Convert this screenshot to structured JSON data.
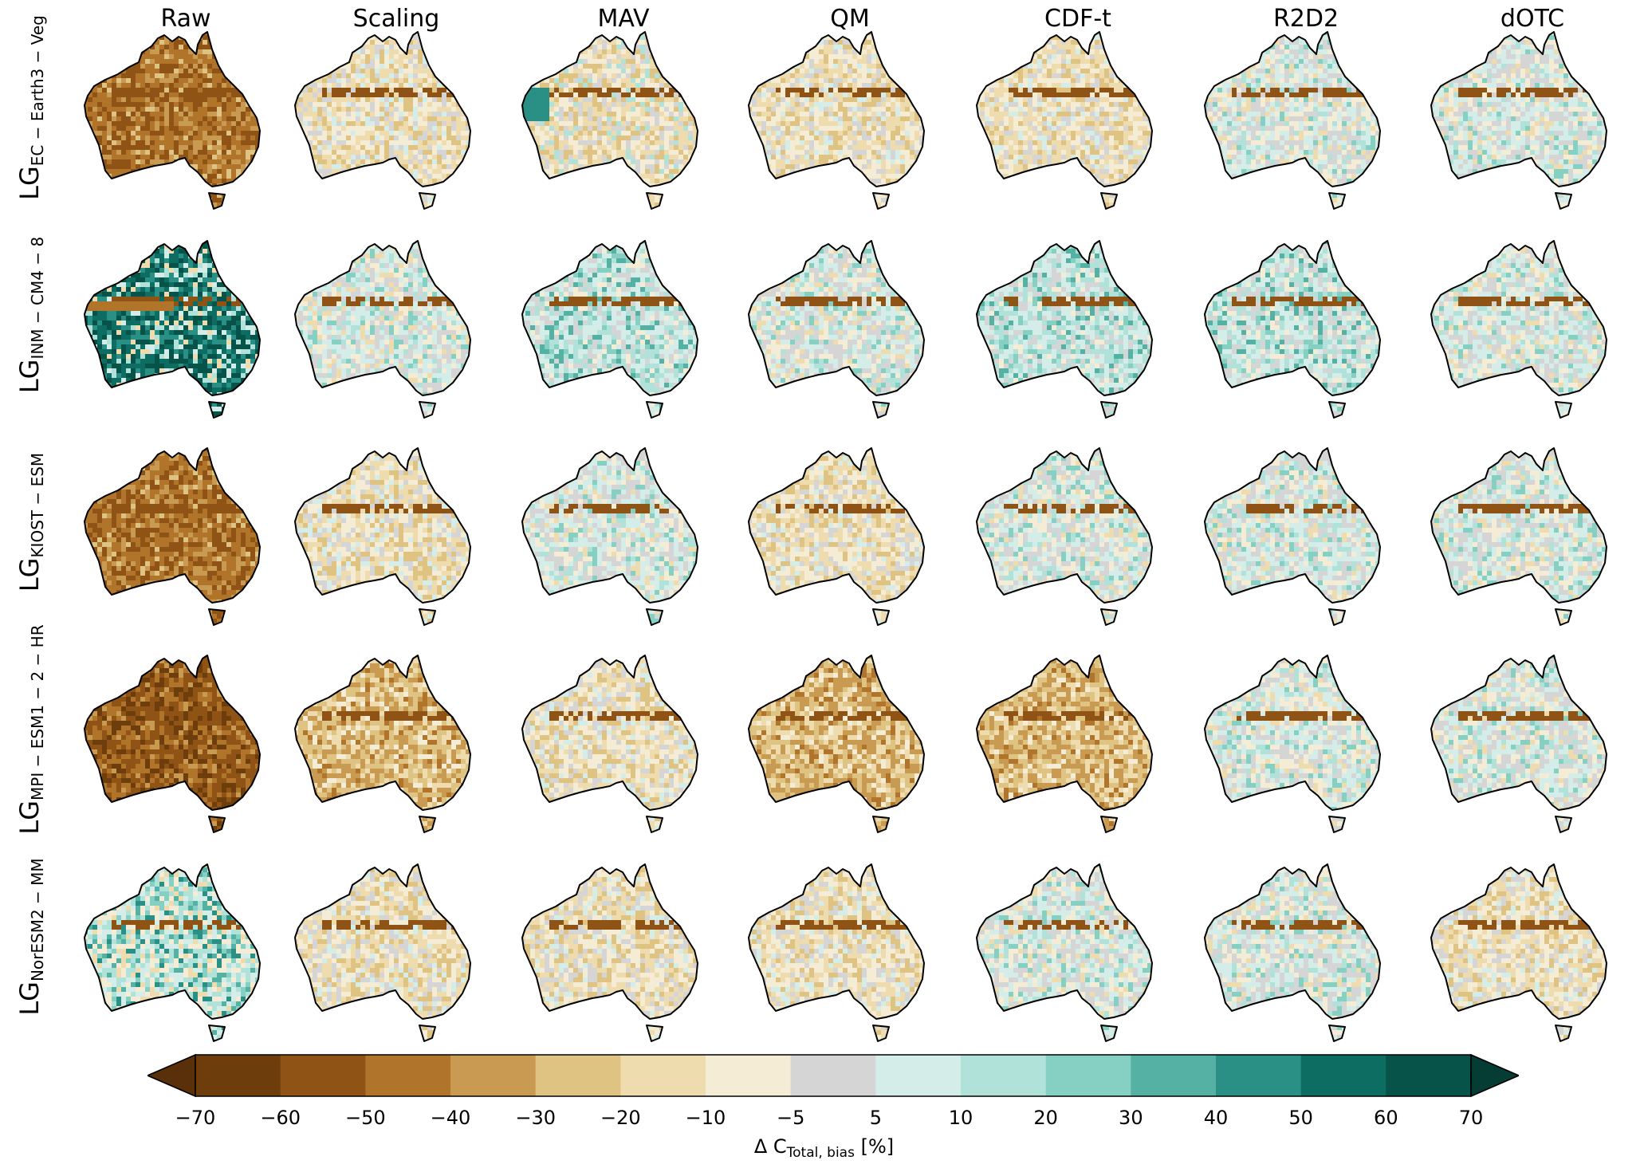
{
  "columns": [
    "Raw",
    "Scaling",
    "MAV",
    "QM",
    "CDF-t",
    "R2D2",
    "dOTC"
  ],
  "rows": [
    {
      "prefix": "LG",
      "subscript": "EC − Earth3 − Veg"
    },
    {
      "prefix": "LG",
      "subscript": "INM − CM4 − 8"
    },
    {
      "prefix": "LG",
      "subscript": "KIOST − ESM"
    },
    {
      "prefix": "LG",
      "subscript": "MPI − ESM1 − 2 − HR"
    },
    {
      "prefix": "LG",
      "subscript": "NorESM2 − MM"
    }
  ],
  "panel_patterns": [
    [
      "dry-strong",
      "mild-dry",
      "mild-dry-west-wet",
      "mild-dry",
      "mild-dry",
      "mixed",
      "mixed"
    ],
    [
      "wet-strong",
      "mixed",
      "mild-wet",
      "mixed",
      "mild-wet",
      "mild-wet",
      "mixed"
    ],
    [
      "dry-strong",
      "mild-dry",
      "mixed",
      "mild-dry",
      "mixed",
      "mixed",
      "mixed"
    ],
    [
      "dry-very-strong",
      "dry-moderate",
      "mild-dry",
      "dry-moderate",
      "dry-moderate",
      "mixed",
      "mixed"
    ],
    [
      "wet-moderate",
      "mild-dry",
      "mild-dry",
      "mild-dry",
      "mixed",
      "mixed",
      "mild-dry"
    ]
  ],
  "colorbar": {
    "ticks": [
      "−70",
      "−60",
      "−50",
      "−40",
      "−30",
      "−20",
      "−10",
      "−5",
      "5",
      "10",
      "20",
      "30",
      "40",
      "50",
      "60",
      "70"
    ],
    "colors": [
      "#6e3d0c",
      "#8e5315",
      "#b0742a",
      "#c99a52",
      "#dfc382",
      "#eedcae",
      "#f5ecd6",
      "#d5d5d5",
      "#d5ede8",
      "#b1e2d9",
      "#86d0c3",
      "#54b1a4",
      "#2a8f84",
      "#0d6d62",
      "#075249"
    ],
    "under_color": "#5a300a",
    "over_color": "#053d35",
    "label_main": "Δ C",
    "label_sub": "Total, bias",
    "label_unit": "[%]"
  }
}
